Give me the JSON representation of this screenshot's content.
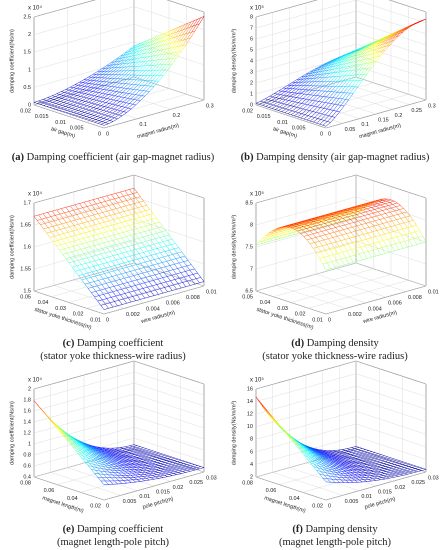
{
  "panels": [
    {
      "label": "(a)",
      "caption": [
        "Damping coefficient (air gap-magnet radius)"
      ],
      "exponent": "x 10⁴",
      "z_label": "damping coefficient(Ns/m)",
      "x_label": "air gap(m)",
      "y_label": "magnet radius(m)",
      "zticks": [
        0,
        0.5,
        1,
        1.5,
        2,
        2.5
      ],
      "xticks": [
        0.02,
        0.015,
        0.01,
        0.005,
        0
      ],
      "yticks": [
        0,
        0.1,
        0.2,
        0.3
      ]
    },
    {
      "label": "(b)",
      "caption": [
        "Damping density (air gap-magnet radius)"
      ],
      "exponent": "x 10⁵",
      "z_label": "damping density(Ns/m/m³)",
      "x_label": "air gap(m)",
      "y_label": "magnet radius(m)",
      "zticks": [
        0,
        1,
        2,
        3,
        4,
        5,
        6,
        7,
        8
      ],
      "xticks": [
        0.02,
        0.015,
        0.01,
        0.005,
        0
      ],
      "yticks": [
        0,
        0.05,
        0.1,
        0.15,
        0.2,
        0.25,
        0.3
      ]
    },
    {
      "label": "(c)",
      "caption": [
        "Damping coefficient",
        "(stator yoke thickness-wire radius)"
      ],
      "exponent": "x 10⁴",
      "z_label": "damping coefficient(Ns/m)",
      "x_label": "stator yoke thickness(m)",
      "y_label": "wire radius(m)",
      "zticks": [
        1.5,
        1.55,
        1.6,
        1.65,
        1.7
      ],
      "xticks": [
        0.05,
        0.04,
        0.03,
        0.02,
        0.01
      ],
      "yticks": [
        0,
        0.002,
        0.004,
        0.006,
        0.008,
        0.01
      ]
    },
    {
      "label": "(d)",
      "caption": [
        "Damping density",
        "(stator yoke thickness-wire radius)"
      ],
      "exponent": "x 10⁵",
      "z_label": "damping density(Ns/m/m³)",
      "x_label": "stator yoke thickness(m)",
      "y_label": "wire radius(m)",
      "zticks": [
        6.5,
        7,
        7.5,
        8,
        8.5
      ],
      "xticks": [
        0.05,
        0.04,
        0.03,
        0.02,
        0.01
      ],
      "yticks": [
        0,
        0.002,
        0.004,
        0.006,
        0.008,
        0.01
      ]
    },
    {
      "label": "(e)",
      "caption": [
        "Damping coefficient",
        "(magnet length-pole pitch)"
      ],
      "exponent": "x 10⁴",
      "z_label": "damping coefficient(Ns/m)",
      "x_label": "magnet length(m)",
      "y_label": "pole pitch(m)",
      "zticks": [
        0.4,
        0.6,
        0.8,
        1,
        1.2,
        1.4,
        1.6,
        1.8,
        2
      ],
      "xticks": [
        0.08,
        0.06,
        0.04,
        0.02
      ],
      "yticks": [
        0,
        0.005,
        0.01,
        0.015,
        0.02,
        0.025,
        0.03
      ]
    },
    {
      "label": "(f)",
      "caption": [
        "Damping density",
        "(magnet length-pole pitch)"
      ],
      "exponent": "x 10⁵",
      "z_label": "damping density(Ns/m/m³)",
      "x_label": "magnet length(m)",
      "y_label": "pole pitch(m)",
      "zticks": [
        2,
        4,
        6,
        8,
        10,
        12,
        14,
        16
      ],
      "xticks": [
        0.08,
        0.06,
        0.04,
        0.02
      ],
      "yticks": [
        0,
        0.005,
        0.01,
        0.015,
        0.02,
        0.025,
        0.03
      ]
    }
  ]
}
